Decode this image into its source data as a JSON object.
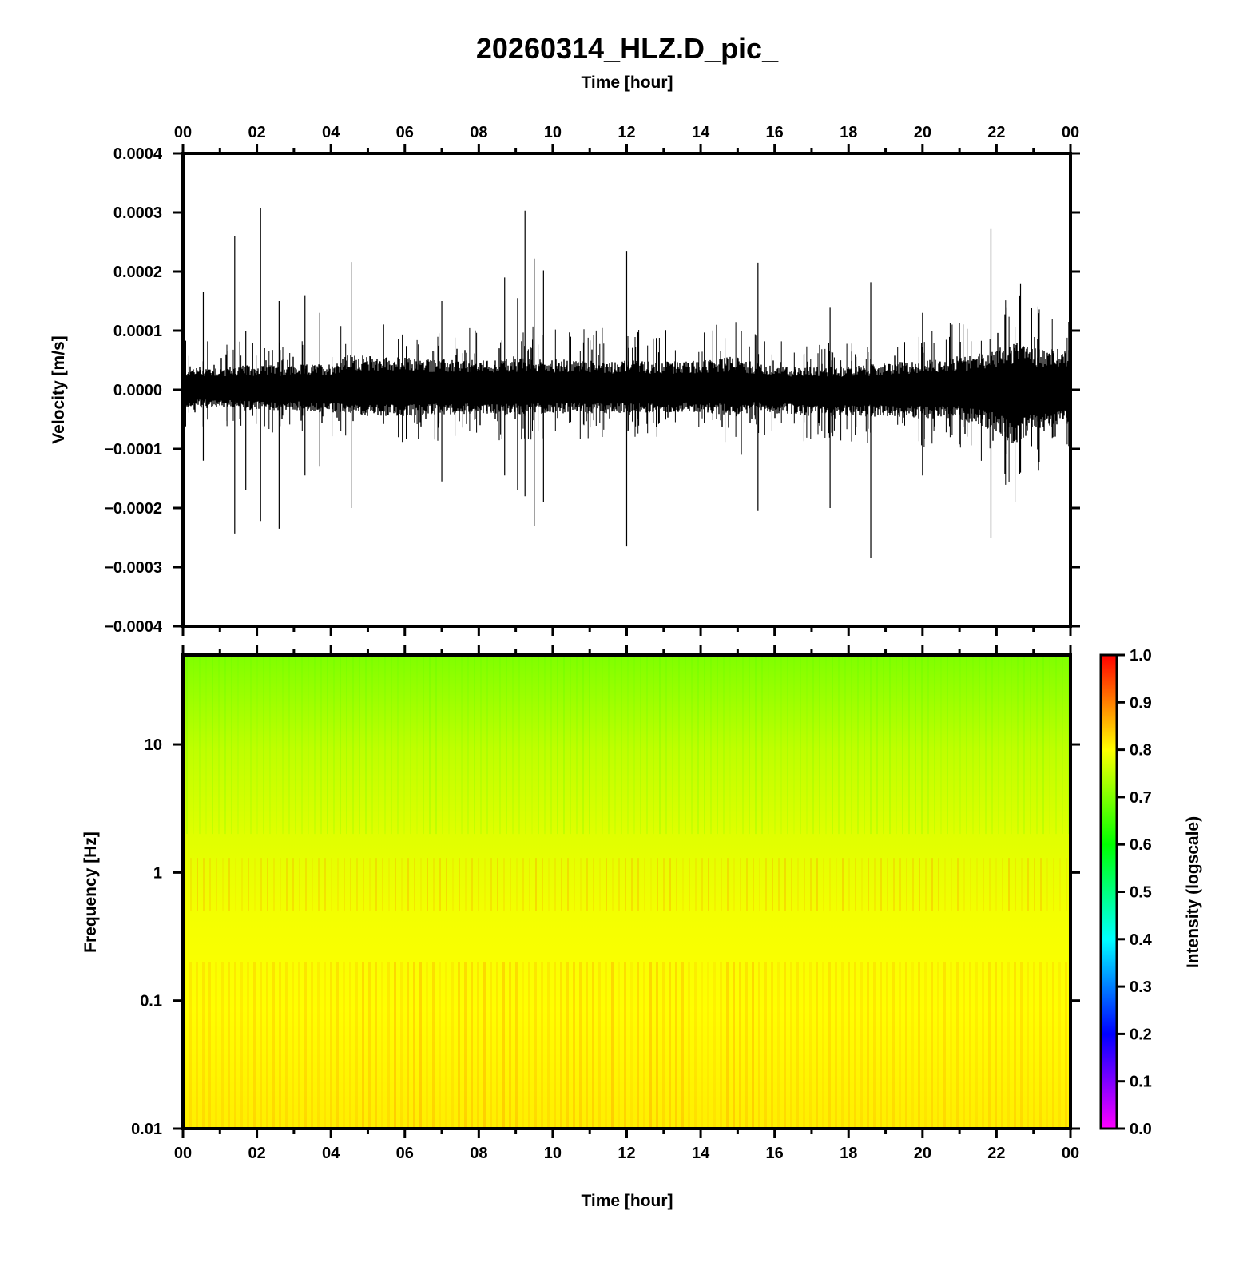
{
  "title": "20260314_HLZ.D_pic_",
  "chart_data": [
    {
      "type": "line",
      "panel": "waveform",
      "title": "20260314_HLZ.D_pic_",
      "xlabel": "Time [hour]",
      "ylabel": "Velocity [m/s]",
      "xlim": [
        0,
        24
      ],
      "ylim": [
        -0.0004,
        0.0004
      ],
      "x_ticks": [
        "00",
        "02",
        "04",
        "06",
        "08",
        "10",
        "12",
        "14",
        "16",
        "18",
        "20",
        "22",
        "00"
      ],
      "y_ticks": [
        "−0.0004",
        "−0.0003",
        "−0.0002",
        "−0.0001",
        "0.0000",
        "0.0001",
        "0.0002",
        "0.0003",
        "0.0004"
      ],
      "y_tick_values": [
        -0.0004,
        -0.0003,
        -0.0002,
        -0.0001,
        0,
        0.0001,
        0.0002,
        0.0003,
        0.0004
      ],
      "noise_envelope": {
        "x": [
          0,
          1,
          2,
          3,
          4,
          4.5,
          5,
          6,
          7,
          8,
          9,
          10,
          11,
          12,
          13,
          14,
          15,
          15.5,
          16,
          17,
          18,
          19,
          20,
          21,
          22,
          22.5,
          23,
          24
        ],
        "upper": [
          4e-05,
          4e-05,
          4.2e-05,
          4.2e-05,
          4.5e-05,
          6e-05,
          5.8e-05,
          5.5e-05,
          5.2e-05,
          5e-05,
          5.4e-05,
          5.2e-05,
          5e-05,
          5e-05,
          4.8e-05,
          5e-05,
          5.8e-05,
          4.5e-05,
          4e-05,
          4e-05,
          4e-05,
          4.5e-05,
          5e-05,
          5.5e-05,
          7e-05,
          8e-05,
          7e-05,
          7e-05
        ],
        "lower": [
          -3e-05,
          -3e-05,
          -3.5e-05,
          -3.5e-05,
          -4e-05,
          -4e-05,
          -4.5e-05,
          -4.5e-05,
          -4.2e-05,
          -4e-05,
          -4.2e-05,
          -4e-05,
          -4e-05,
          -4e-05,
          -3.8e-05,
          -3.8e-05,
          -4.5e-05,
          -3.5e-05,
          -4e-05,
          -4.5e-05,
          -4.5e-05,
          -4.5e-05,
          -5e-05,
          -5e-05,
          -7e-05,
          -0.0001,
          -7e-05,
          -6e-05
        ]
      },
      "spikes": [
        {
          "x": 0.55,
          "max": 0.000165,
          "min": -0.00012
        },
        {
          "x": 1.4,
          "max": 0.00026,
          "min": -0.000243
        },
        {
          "x": 1.7,
          "max": 0.0001,
          "min": -0.00017
        },
        {
          "x": 2.1,
          "max": 0.000307,
          "min": -0.000222
        },
        {
          "x": 2.6,
          "max": 0.00015,
          "min": -0.000235
        },
        {
          "x": 3.3,
          "max": 0.00016,
          "min": -0.000145
        },
        {
          "x": 3.7,
          "max": 0.00013,
          "min": -0.00013
        },
        {
          "x": 4.55,
          "max": 0.000216,
          "min": -0.0002
        },
        {
          "x": 7.0,
          "max": 0.00015,
          "min": -0.000155
        },
        {
          "x": 8.7,
          "max": 0.00019,
          "min": -0.000145
        },
        {
          "x": 9.05,
          "max": 0.000155,
          "min": -0.00017
        },
        {
          "x": 9.25,
          "max": 0.000303,
          "min": -0.00018
        },
        {
          "x": 9.5,
          "max": 0.000222,
          "min": -0.00023
        },
        {
          "x": 9.75,
          "max": 0.000202,
          "min": -0.00019
        },
        {
          "x": 12.0,
          "max": 0.000235,
          "min": -0.000265
        },
        {
          "x": 15.1,
          "max": 0.0001,
          "min": -0.00011
        },
        {
          "x": 15.55,
          "max": 0.000215,
          "min": -0.000205
        },
        {
          "x": 17.5,
          "max": 0.00014,
          "min": -0.0002
        },
        {
          "x": 18.6,
          "max": 0.000182,
          "min": -0.000285
        },
        {
          "x": 20.0,
          "max": 0.00013,
          "min": -0.000145
        },
        {
          "x": 21.85,
          "max": 0.000272,
          "min": -0.00025
        },
        {
          "x": 22.65,
          "max": 0.00018,
          "min": -0.00014
        }
      ]
    },
    {
      "type": "heatmap",
      "panel": "spectrogram",
      "xlabel": "Time [hour]",
      "ylabel": "Frequency [Hz]",
      "xlim": [
        0,
        24
      ],
      "ylim": [
        0.01,
        50
      ],
      "y_scale": "log",
      "x_ticks": [
        "00",
        "02",
        "04",
        "06",
        "08",
        "10",
        "12",
        "14",
        "16",
        "18",
        "20",
        "22",
        "00"
      ],
      "y_ticks": [
        "0.01",
        "0.1",
        "1",
        "10"
      ],
      "y_tick_values": [
        0.01,
        0.1,
        1,
        10
      ],
      "colorbar": {
        "label": "Intensity (logscale)",
        "range": [
          0,
          1
        ],
        "ticks": [
          "0.0",
          "0.1",
          "0.2",
          "0.3",
          "0.4",
          "0.5",
          "0.6",
          "0.7",
          "0.8",
          "0.9",
          "1.0"
        ],
        "colors": [
          "#ff00ff",
          "#0000ff",
          "#00ffff",
          "#00ff00",
          "#ffff00",
          "#ff0000"
        ]
      },
      "intensity_profile": {
        "frequency": [
          0.01,
          0.03,
          0.1,
          0.2,
          0.3,
          0.6,
          1,
          1.3,
          2,
          5,
          10,
          20,
          50
        ],
        "intensity": [
          0.82,
          0.8,
          0.79,
          0.81,
          0.8,
          0.79,
          0.79,
          0.8,
          0.78,
          0.77,
          0.75,
          0.72,
          0.68
        ]
      }
    }
  ]
}
